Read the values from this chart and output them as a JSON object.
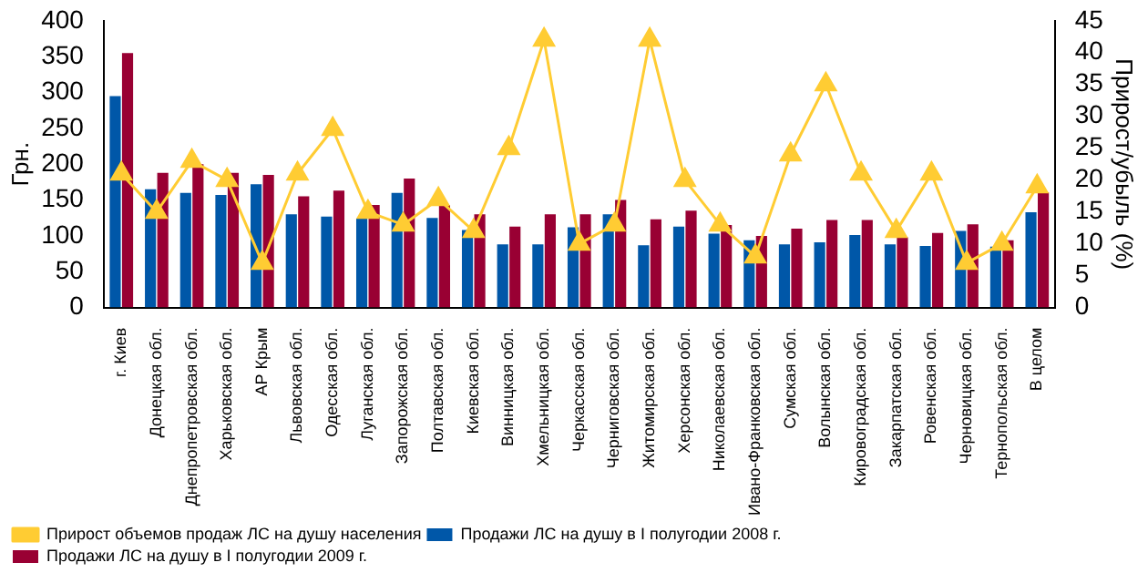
{
  "chart_data": {
    "type": "bar",
    "ylabel": "Грн.",
    "y2label": "Прирост/убыль (%)",
    "categories": [
      "г. Киев",
      "Донецкая обл.",
      "Днепропетровская обл.",
      "Харьковская обл.",
      "АР Крым",
      "Львовская обл.",
      "Одесская обл.",
      "Луганская обл.",
      "Запорожская обл.",
      "Полтавская обл.",
      "Киевская обл.",
      "Винницкая обл.",
      "Хмельницкая обл.",
      "Черкасская обл.",
      "Черниговская обл.",
      "Житомирская обл.",
      "Херсонская обл.",
      "Николаевская обл.",
      "Ивано-Франковская обл.",
      "Сумская обл.",
      "Волынская обл.",
      "Кировоградская обл.",
      "Закарпатская обл.",
      "Ровенская обл.",
      "Черновицкая обл.",
      "Тернопольская обл.",
      "В целом"
    ],
    "series": [
      {
        "name": "Продажи ЛС на душу в I полугодии 2008 г.",
        "color": "#0057a8",
        "values": [
          295,
          165,
          160,
          157,
          172,
          130,
          127,
          124,
          160,
          125,
          108,
          88,
          88,
          112,
          130,
          87,
          113,
          103,
          94,
          88,
          91,
          101,
          88,
          86,
          107,
          85,
          133
        ]
      },
      {
        "name": "Продажи ЛС на душу в I полугодии 2009 г.",
        "color": "#990033",
        "values": [
          355,
          188,
          200,
          188,
          185,
          155,
          163,
          143,
          180,
          143,
          130,
          113,
          130,
          130,
          150,
          123,
          135,
          115,
          100,
          110,
          122,
          122,
          98,
          104,
          116,
          94,
          161
        ]
      },
      {
        "name": "Прирост объемов продаж ЛС на душу населения",
        "type": "line",
        "axis": "y2",
        "color": "#ffcc33",
        "values": [
          21,
          15,
          23,
          20,
          7,
          21,
          28,
          15,
          13,
          17,
          12,
          25,
          42,
          10,
          13,
          42,
          20,
          13,
          8,
          24,
          35,
          21,
          12,
          21,
          7,
          10,
          19
        ]
      }
    ],
    "ylim": [
      0,
      400
    ],
    "yticks": [
      0,
      50,
      100,
      150,
      200,
      250,
      300,
      350,
      400
    ],
    "y2lim": [
      0,
      45
    ],
    "y2ticks": [
      0,
      5,
      10,
      15,
      20,
      25,
      30,
      35,
      40,
      45
    ],
    "grid": false,
    "legend": "bottom",
    "marker": "triangle",
    "line_style": "solid"
  }
}
